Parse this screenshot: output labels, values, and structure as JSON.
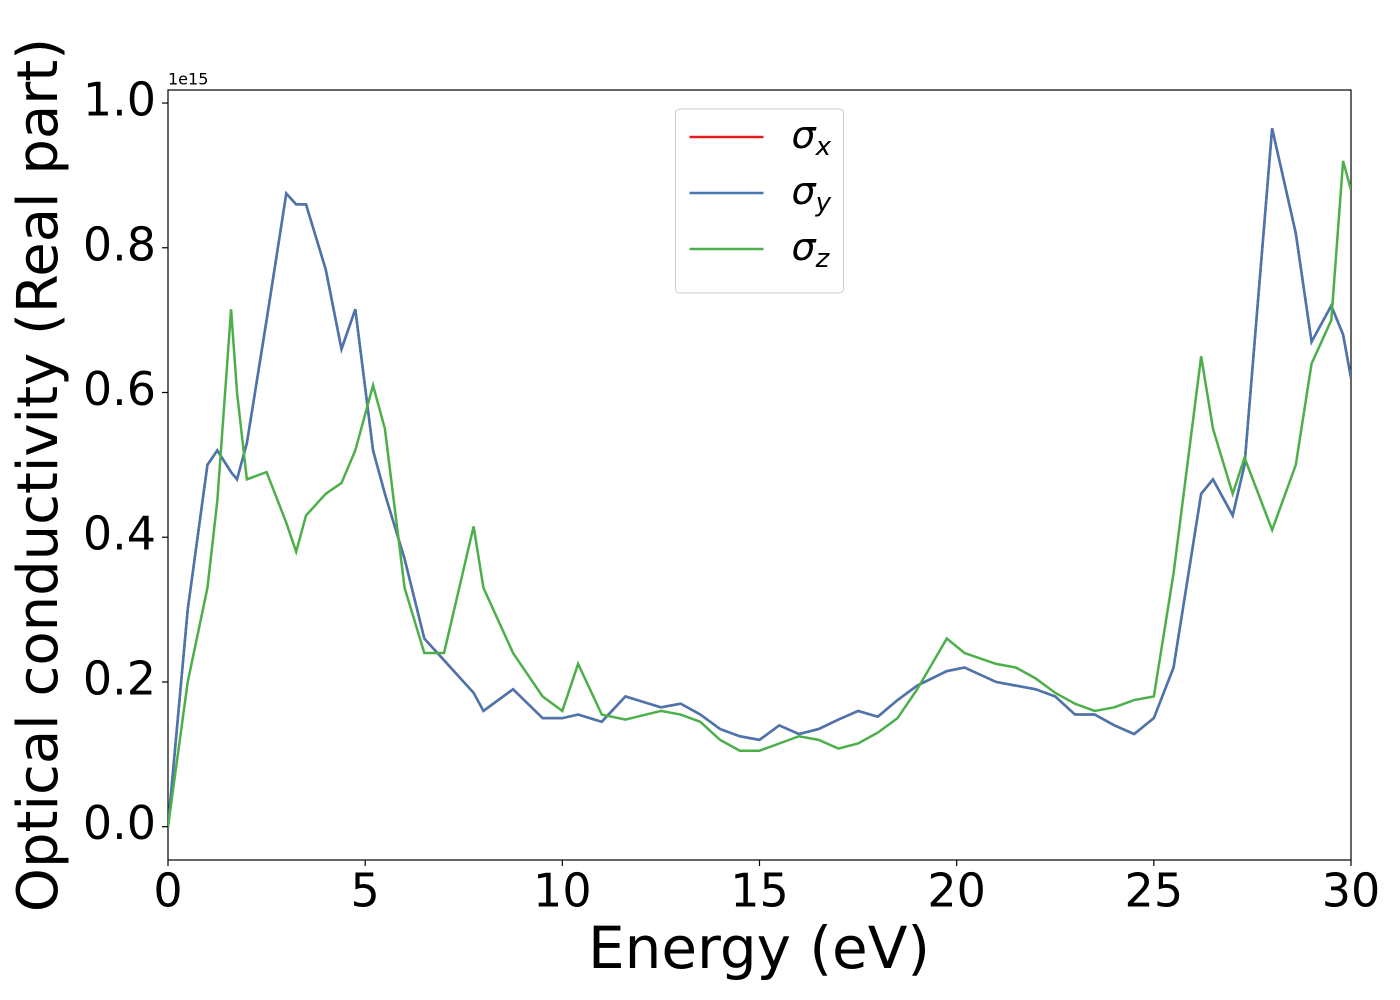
{
  "chart_data": {
    "type": "line",
    "xlabel": "Energy (eV)",
    "ylabel": "Optical conductivity (Real part)",
    "y_offset_label": "1e15",
    "x": [
      0,
      0.5,
      1,
      1.25,
      1.6,
      1.75,
      2,
      2.5,
      3,
      3.25,
      3.5,
      4,
      4.4,
      4.75,
      5.2,
      5.5,
      6,
      6.5,
      7,
      7.75,
      8,
      8.75,
      9.5,
      10,
      10.4,
      11,
      11.6,
      12.5,
      13,
      13.5,
      14,
      14.5,
      15,
      15.5,
      16,
      16.5,
      17,
      17.5,
      18,
      18.5,
      19,
      19.75,
      20.2,
      21,
      21.5,
      22,
      22.5,
      23,
      23.5,
      24,
      24.5,
      25,
      25.5,
      26.2,
      26.5,
      27,
      27.3,
      28,
      28.6,
      29,
      29.5,
      29.8,
      30
    ],
    "series": [
      {
        "name": "σx",
        "color": "#e41a1c",
        "values": [
          0,
          0.3,
          0.5,
          0.52,
          0.49,
          0.48,
          0.53,
          0.7,
          0.875,
          0.86,
          0.86,
          0.77,
          0.66,
          0.715,
          0.52,
          0.46,
          0.37,
          0.26,
          0.23,
          0.185,
          0.16,
          0.19,
          0.15,
          0.15,
          0.155,
          0.145,
          0.18,
          0.165,
          0.17,
          0.155,
          0.135,
          0.125,
          0.12,
          0.14,
          0.128,
          0.135,
          0.148,
          0.16,
          0.152,
          0.175,
          0.195,
          0.215,
          0.22,
          0.2,
          0.195,
          0.19,
          0.18,
          0.155,
          0.155,
          0.14,
          0.128,
          0.15,
          0.22,
          0.46,
          0.48,
          0.43,
          0.5,
          0.965,
          0.82,
          0.67,
          0.72,
          0.68,
          0.62
        ]
      },
      {
        "name": "σy",
        "color": "#4677b0",
        "values": [
          0,
          0.3,
          0.5,
          0.52,
          0.49,
          0.48,
          0.53,
          0.7,
          0.875,
          0.86,
          0.86,
          0.77,
          0.66,
          0.715,
          0.52,
          0.46,
          0.37,
          0.26,
          0.23,
          0.185,
          0.16,
          0.19,
          0.15,
          0.15,
          0.155,
          0.145,
          0.18,
          0.165,
          0.17,
          0.155,
          0.135,
          0.125,
          0.12,
          0.14,
          0.128,
          0.135,
          0.148,
          0.16,
          0.152,
          0.175,
          0.195,
          0.215,
          0.22,
          0.2,
          0.195,
          0.19,
          0.18,
          0.155,
          0.155,
          0.14,
          0.128,
          0.15,
          0.22,
          0.46,
          0.48,
          0.43,
          0.5,
          0.965,
          0.82,
          0.67,
          0.72,
          0.68,
          0.62
        ]
      },
      {
        "name": "σz",
        "color": "#4daf4a",
        "values": [
          0,
          0.2,
          0.33,
          0.45,
          0.715,
          0.6,
          0.48,
          0.49,
          0.42,
          0.38,
          0.43,
          0.46,
          0.475,
          0.52,
          0.61,
          0.55,
          0.33,
          0.24,
          0.24,
          0.415,
          0.33,
          0.24,
          0.18,
          0.16,
          0.225,
          0.155,
          0.148,
          0.16,
          0.155,
          0.145,
          0.12,
          0.105,
          0.105,
          0.115,
          0.125,
          0.12,
          0.108,
          0.115,
          0.13,
          0.15,
          0.19,
          0.26,
          0.24,
          0.225,
          0.22,
          0.205,
          0.185,
          0.17,
          0.16,
          0.165,
          0.175,
          0.18,
          0.35,
          0.65,
          0.55,
          0.46,
          0.51,
          0.41,
          0.5,
          0.64,
          0.7,
          0.92,
          0.88
        ]
      }
    ],
    "xlim": [
      0,
      30
    ],
    "xticks": [
      0,
      5,
      10,
      15,
      20,
      25,
      30
    ],
    "ylim": [
      -0.046,
      1.018
    ],
    "yticks": [
      {
        "value": 0,
        "label": "0.0"
      },
      0.2,
      0.4,
      0.6,
      0.8,
      {
        "value": 1,
        "label": "1.0"
      }
    ],
    "grid": false,
    "legend": "upper center"
  }
}
